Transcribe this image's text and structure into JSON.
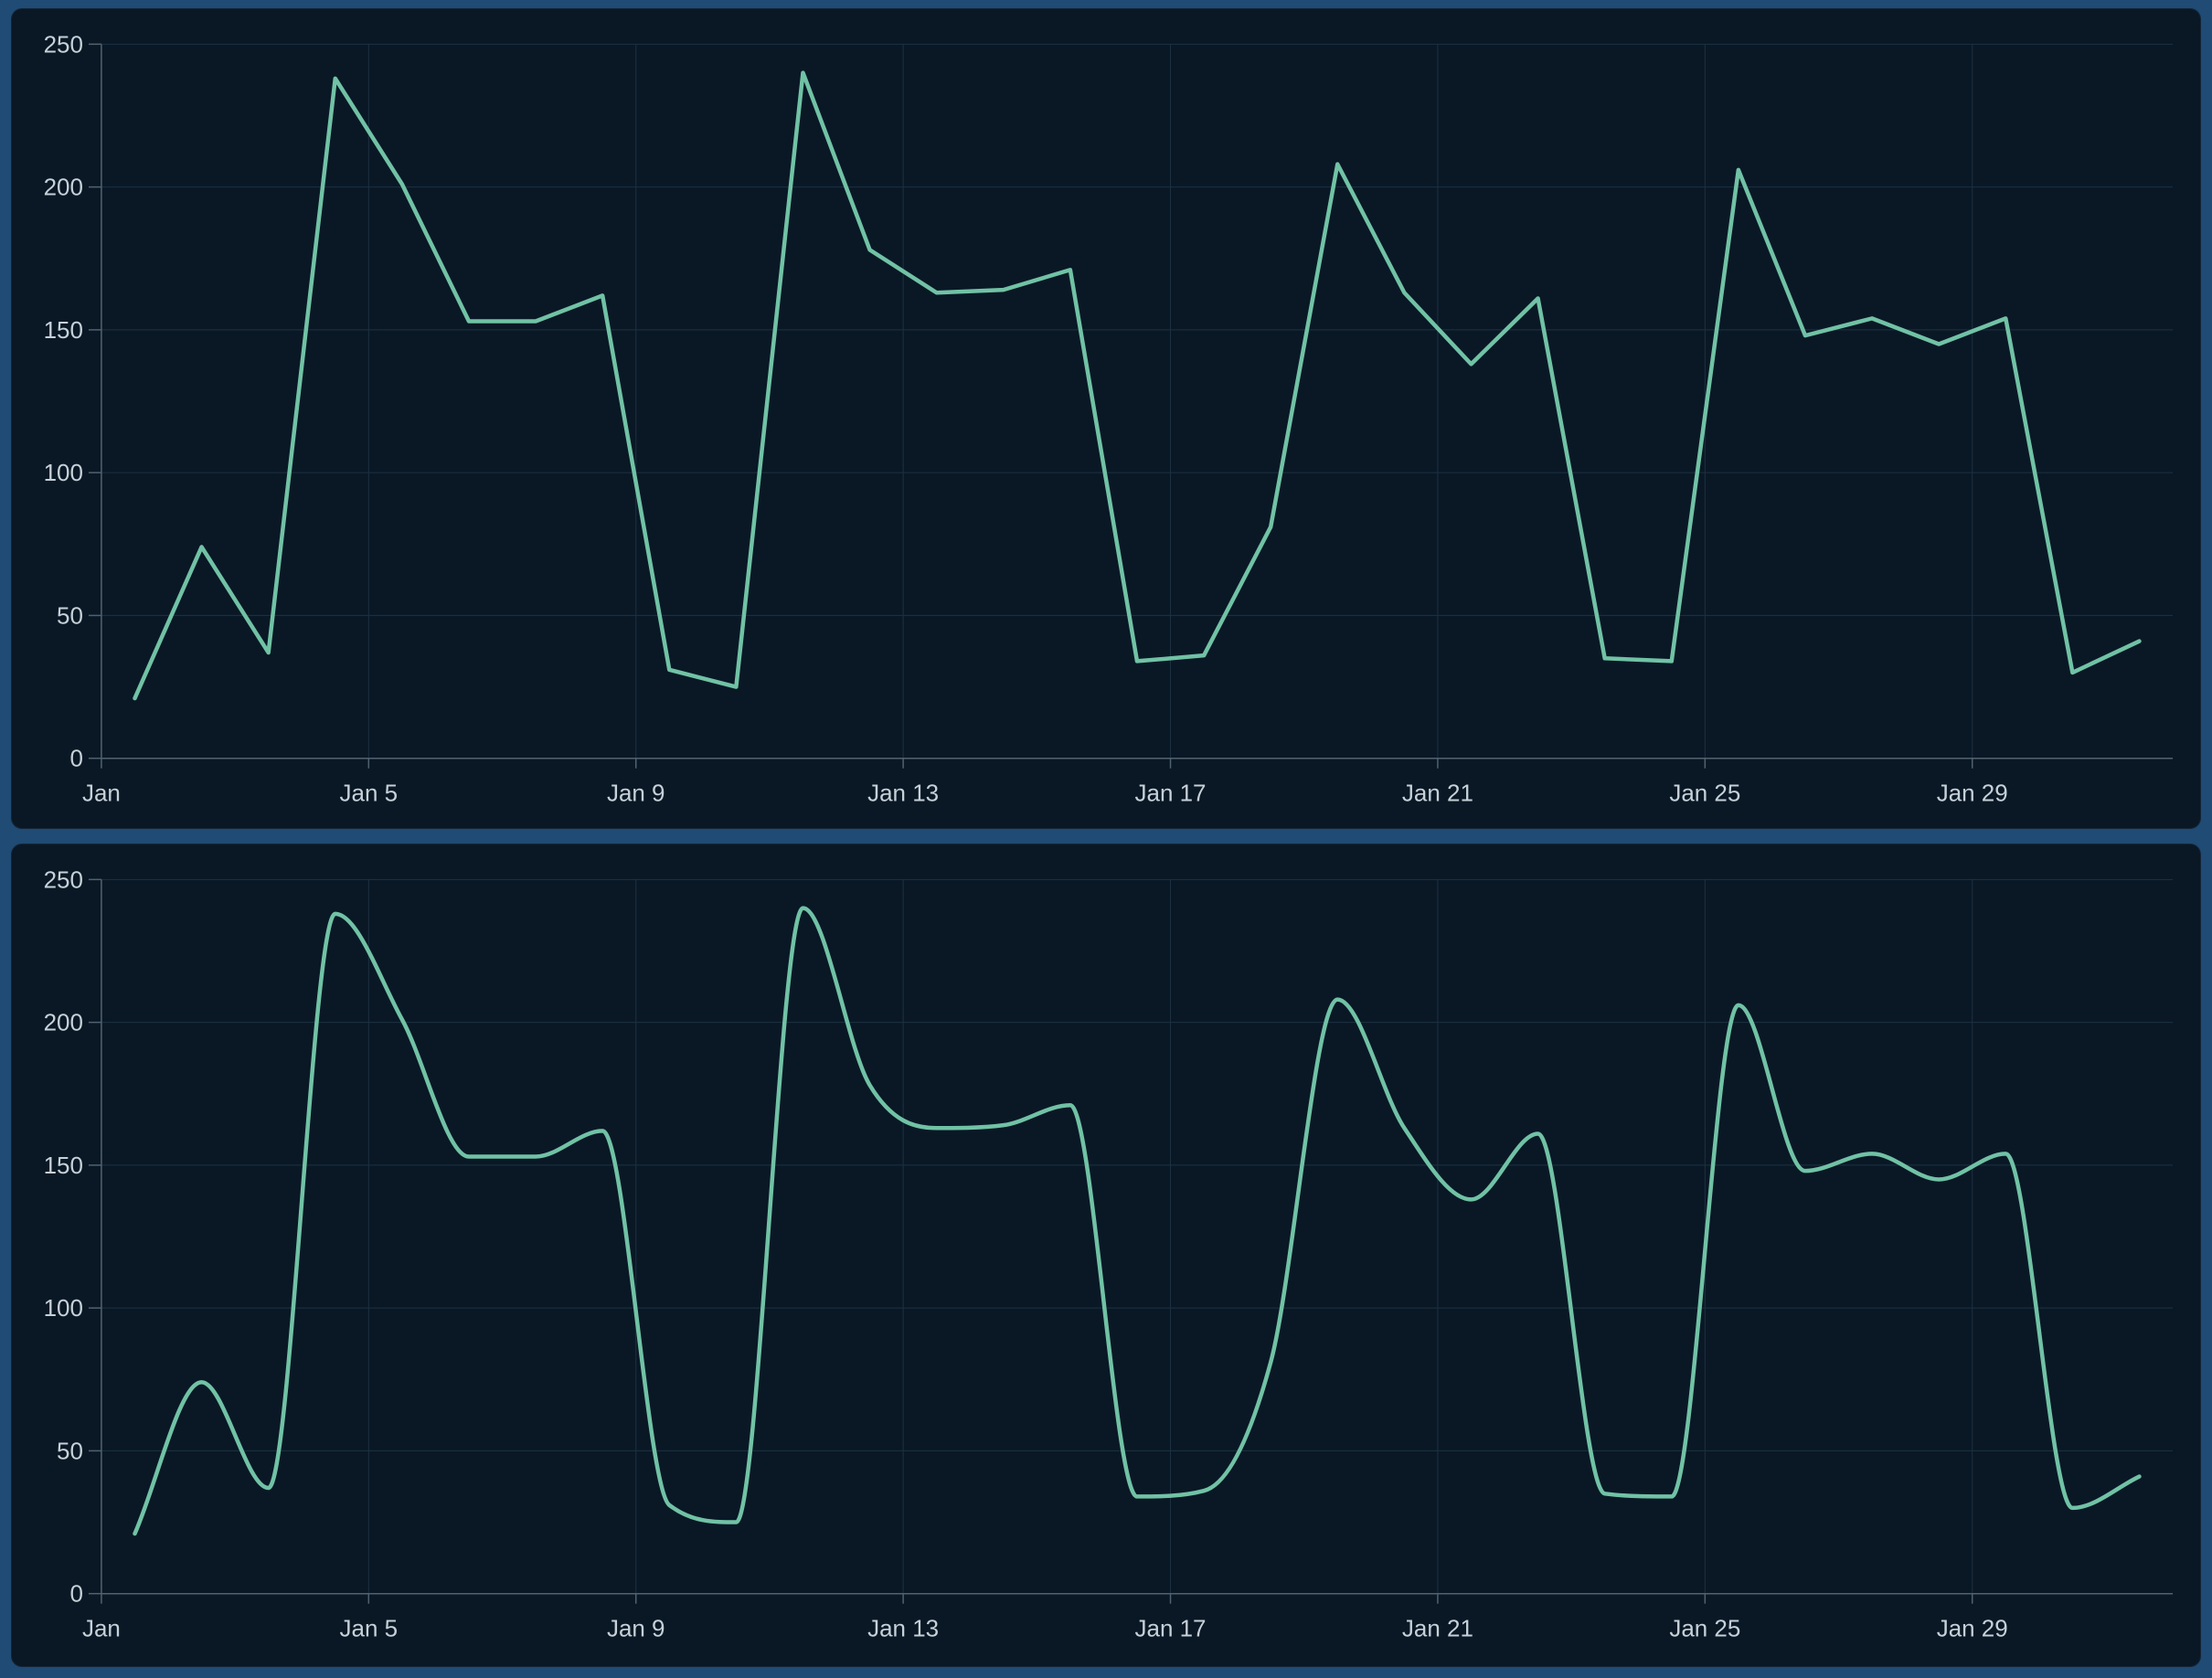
{
  "page": {
    "frame_color": "#1f4b75",
    "panel_background": "#0a1826",
    "grid_color": "#1d3141",
    "axis_color": "#51626f",
    "label_color": "#c6d1d8",
    "line_color": "#71c2a5"
  },
  "chart_data": [
    {
      "type": "line",
      "smooth": false,
      "title": "",
      "xlabel": "",
      "ylabel": "",
      "categories": [
        "Jan 1",
        "Jan 2",
        "Jan 3",
        "Jan 4",
        "Jan 5",
        "Jan 6",
        "Jan 7",
        "Jan 8",
        "Jan 9",
        "Jan 10",
        "Jan 11",
        "Jan 12",
        "Jan 13",
        "Jan 14",
        "Jan 15",
        "Jan 16",
        "Jan 17",
        "Jan 18",
        "Jan 19",
        "Jan 20",
        "Jan 21",
        "Jan 22",
        "Jan 23",
        "Jan 24",
        "Jan 25",
        "Jan 26",
        "Jan 27",
        "Jan 28",
        "Jan 29",
        "Jan 30",
        "Jan 31"
      ],
      "values": [
        21,
        74,
        37,
        238,
        201,
        153,
        153,
        162,
        31,
        25,
        240,
        178,
        163,
        164,
        171,
        34,
        36,
        81,
        208,
        163,
        138,
        161,
        35,
        34,
        206,
        148,
        154,
        145,
        154,
        30,
        41
      ],
      "x_tick_labels": [
        "Jan",
        "Jan 5",
        "Jan 9",
        "Jan 13",
        "Jan 17",
        "Jan 21",
        "Jan 25",
        "Jan 29"
      ],
      "x_tick_every": 4,
      "y_ticks": [
        0,
        50,
        100,
        150,
        200,
        250
      ],
      "ylim": [
        0,
        250
      ],
      "grid": true,
      "legend": null,
      "line_color": "#71c2a5"
    },
    {
      "type": "line",
      "smooth": true,
      "title": "",
      "xlabel": "",
      "ylabel": "",
      "categories": [
        "Jan 1",
        "Jan 2",
        "Jan 3",
        "Jan 4",
        "Jan 5",
        "Jan 6",
        "Jan 7",
        "Jan 8",
        "Jan 9",
        "Jan 10",
        "Jan 11",
        "Jan 12",
        "Jan 13",
        "Jan 14",
        "Jan 15",
        "Jan 16",
        "Jan 17",
        "Jan 18",
        "Jan 19",
        "Jan 20",
        "Jan 21",
        "Jan 22",
        "Jan 23",
        "Jan 24",
        "Jan 25",
        "Jan 26",
        "Jan 27",
        "Jan 28",
        "Jan 29",
        "Jan 30",
        "Jan 31"
      ],
      "values": [
        21,
        74,
        37,
        238,
        201,
        153,
        153,
        162,
        31,
        25,
        240,
        178,
        163,
        164,
        171,
        34,
        36,
        81,
        208,
        163,
        138,
        161,
        35,
        34,
        206,
        148,
        154,
        145,
        154,
        30,
        41
      ],
      "x_tick_labels": [
        "Jan",
        "Jan 5",
        "Jan 9",
        "Jan 13",
        "Jan 17",
        "Jan 21",
        "Jan 25",
        "Jan 29"
      ],
      "x_tick_every": 4,
      "y_ticks": [
        0,
        50,
        100,
        150,
        200,
        250
      ],
      "ylim": [
        0,
        250
      ],
      "grid": true,
      "legend": null,
      "line_color": "#71c2a5"
    }
  ]
}
